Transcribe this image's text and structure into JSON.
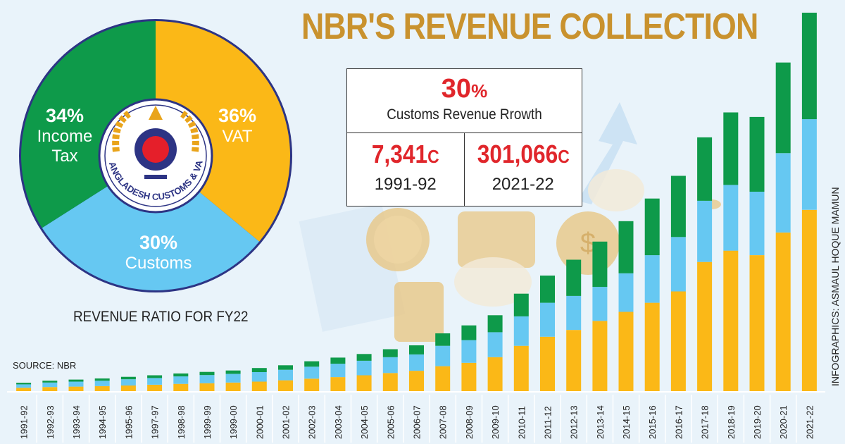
{
  "title": "NBR'S REVENUE COLLECTION",
  "source_label": "SOURCE: NBR",
  "credit": "INFOGRAPHICS: ASMAUL HOQUE MAMUN",
  "highlight": {
    "growth_value": "30",
    "growth_unit": "%",
    "growth_label": "Customs Revenue Rrowth",
    "start_value": "7,341",
    "start_unit": "C",
    "start_year": "1991-92",
    "end_value": "301,066",
    "end_unit": "C",
    "end_year": "2021-22"
  },
  "pie": {
    "caption": "REVENUE RATIO FOR FY22",
    "logo_text": "BANGLADESH CUSTOMS & VAT",
    "slices": [
      {
        "label": "VAT",
        "value": 36,
        "display": "36%",
        "color": "#fbb817"
      },
      {
        "label": "Customs",
        "value": 30,
        "display": "30%",
        "color": "#66c8f2"
      },
      {
        "label": "Income Tax",
        "value": 34,
        "display": "34%",
        "color": "#0e9a4a"
      }
    ]
  },
  "colors": {
    "vat": "#fbb817",
    "customs": "#66c8f2",
    "income_tax": "#0e9a4a",
    "ring": "#2d3484"
  },
  "chart_data": [
    {
      "type": "bar",
      "stacked": true,
      "categories": [
        "1991-92",
        "1992-93",
        "1993-94",
        "1994-95",
        "1995-96",
        "1997-97",
        "1998-98",
        "1999-99",
        "1999-00",
        "2000-01",
        "2001-02",
        "2002-03",
        "2003-04",
        "2004-05",
        "2005-06",
        "2006-07",
        "2007-08",
        "2008-09",
        "2009-10",
        "2010-11",
        "2011-12",
        "2012-13",
        "2013-14",
        "2014-15",
        "2015-16",
        "2016-17",
        "2017-18",
        "2018-19",
        "2019-20",
        "2020-21",
        "2021-22"
      ],
      "series": [
        {
          "key": "vat",
          "values": [
            1.5,
            1.8,
            2.0,
            2.2,
            2.5,
            2.8,
            3.2,
            3.5,
            3.8,
            4.2,
            4.8,
            5.5,
            6.2,
            7.0,
            8.0,
            9.0,
            11.0,
            12.5,
            15.0,
            20.0,
            24.0,
            27.0,
            31.0,
            35.0,
            39.0,
            44.0,
            57.0,
            62.0,
            60.0,
            70.0,
            80.0
          ]
        },
        {
          "key": "customs",
          "values": [
            1.5,
            2.0,
            2.2,
            2.4,
            2.7,
            3.0,
            3.3,
            3.6,
            3.8,
            4.2,
            4.6,
            5.3,
            5.9,
            6.4,
            7.0,
            7.2,
            9.0,
            10.0,
            11.0,
            13.0,
            15.0,
            15.0,
            15.0,
            17.0,
            21.0,
            24.0,
            27.0,
            29.0,
            28.0,
            35.0,
            40.0
          ]
        },
        {
          "key": "income_tax",
          "values": [
            0.7,
            0.8,
            0.9,
            1.0,
            1.1,
            1.2,
            1.3,
            1.4,
            1.5,
            1.8,
            2.0,
            2.4,
            2.7,
            3.0,
            3.5,
            4.0,
            5.5,
            6.5,
            7.5,
            10.0,
            12.0,
            16.0,
            20.0,
            23.0,
            25.0,
            27.0,
            28.0,
            32.0,
            33.0,
            40.0,
            47.0
          ]
        }
      ],
      "xlabel": "",
      "ylabel": "",
      "grid": false
    },
    {
      "type": "pie",
      "title": "REVENUE RATIO FOR FY22",
      "labels": [
        "VAT",
        "Customs",
        "Income Tax"
      ],
      "values": [
        36,
        30,
        34
      ]
    }
  ]
}
